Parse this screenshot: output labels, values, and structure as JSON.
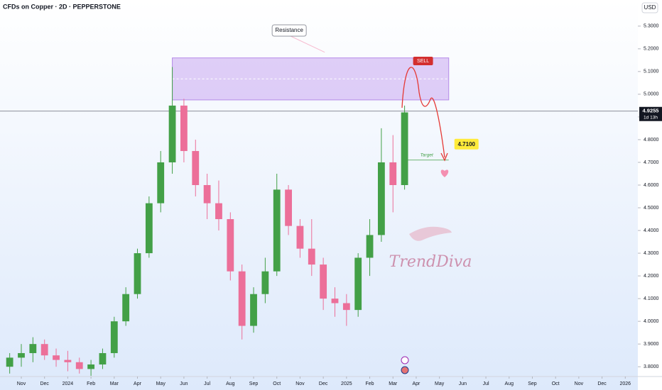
{
  "chart_data": {
    "type": "candlestick",
    "title": "CFDs on Copper · 2D · PEPPERSTONE",
    "currency": "USD",
    "x": [
      -0.5,
      0,
      0.5,
      1,
      1.5,
      2,
      2.5,
      3,
      3.5,
      4,
      4.5,
      5,
      5.5,
      6,
      6.5,
      7,
      7.5,
      8,
      8.5,
      9,
      9.5,
      10,
      10.5,
      11,
      11.5,
      12,
      12.5,
      13,
      13.5,
      14,
      14.5,
      15,
      15.5,
      16,
      16.5
    ],
    "open": [
      3.8,
      3.84,
      3.86,
      3.9,
      3.85,
      3.83,
      3.82,
      3.79,
      3.81,
      3.86,
      4.0,
      4.12,
      4.3,
      4.52,
      4.7,
      4.95,
      4.75,
      4.6,
      4.52,
      4.45,
      4.22,
      3.98,
      4.12,
      4.22,
      4.58,
      4.42,
      4.32,
      4.25,
      4.1,
      4.08,
      4.05,
      4.28,
      4.38,
      4.7,
      4.6
    ],
    "high": [
      3.86,
      3.9,
      3.93,
      3.92,
      3.88,
      3.87,
      3.84,
      3.83,
      3.88,
      4.02,
      4.15,
      4.32,
      4.55,
      4.75,
      5.12,
      4.98,
      4.8,
      4.65,
      4.62,
      4.48,
      4.25,
      4.15,
      4.28,
      4.65,
      4.6,
      4.45,
      4.45,
      4.28,
      4.15,
      4.12,
      4.3,
      4.45,
      4.85,
      4.82,
      4.95
    ],
    "low": [
      3.77,
      3.8,
      3.82,
      3.83,
      3.8,
      3.78,
      3.77,
      3.76,
      3.79,
      3.84,
      3.98,
      4.1,
      4.28,
      4.48,
      4.65,
      4.7,
      4.55,
      4.45,
      4.4,
      4.18,
      3.92,
      3.95,
      4.08,
      4.2,
      4.38,
      4.28,
      4.2,
      4.05,
      4.02,
      3.98,
      4.02,
      4.2,
      4.35,
      4.48,
      4.58
    ],
    "close": [
      3.84,
      3.86,
      3.9,
      3.85,
      3.83,
      3.82,
      3.79,
      3.81,
      3.86,
      4.0,
      4.12,
      4.3,
      4.52,
      4.7,
      4.95,
      4.75,
      4.6,
      4.52,
      4.45,
      4.22,
      3.98,
      4.12,
      4.22,
      4.58,
      4.42,
      4.32,
      4.25,
      4.1,
      4.08,
      4.05,
      4.28,
      4.38,
      4.7,
      4.6,
      4.92
    ],
    "up_color": "#43a047",
    "down_color": "#ec6f99",
    "xlim": [
      -0.917,
      26.45
    ],
    "xticks": [
      {
        "value": 0,
        "label": "Nov"
      },
      {
        "value": 1,
        "label": "Dec"
      },
      {
        "value": 2,
        "label": "2024"
      },
      {
        "value": 3,
        "label": "Feb"
      },
      {
        "value": 4,
        "label": "Mar"
      },
      {
        "value": 5,
        "label": "Apr"
      },
      {
        "value": 6,
        "label": "May"
      },
      {
        "value": 7,
        "label": "Jun"
      },
      {
        "value": 8,
        "label": "Jul"
      },
      {
        "value": 9,
        "label": "Aug"
      },
      {
        "value": 10,
        "label": "Sep"
      },
      {
        "value": 11,
        "label": "Oct"
      },
      {
        "value": 12,
        "label": "Nov"
      },
      {
        "value": 13,
        "label": "Dec"
      },
      {
        "value": 14,
        "label": "2025"
      },
      {
        "value": 15,
        "label": "Feb"
      },
      {
        "value": 16,
        "label": "Mar"
      },
      {
        "value": 17,
        "label": "Apr"
      },
      {
        "value": 18,
        "label": "May"
      },
      {
        "value": 19,
        "label": "Jun"
      },
      {
        "value": 20,
        "label": "Jul"
      },
      {
        "value": 21,
        "label": "Aug"
      },
      {
        "value": 22,
        "label": "Sep"
      },
      {
        "value": 23,
        "label": "Oct"
      },
      {
        "value": 24,
        "label": "Nov"
      },
      {
        "value": 25,
        "label": "Dec"
      },
      {
        "value": 26,
        "label": "2026"
      }
    ],
    "ylim": [
      3.76,
      5.415
    ],
    "yticks": [
      {
        "value": 3.8,
        "label": "3.8000"
      },
      {
        "value": 3.9,
        "label": "3.9000"
      },
      {
        "value": 4.0,
        "label": "4.0000"
      },
      {
        "value": 4.1,
        "label": "4.1000"
      },
      {
        "value": 4.2,
        "label": "4.2000"
      },
      {
        "value": 4.3,
        "label": "4.3000"
      },
      {
        "value": 4.4,
        "label": "4.4000"
      },
      {
        "value": 4.5,
        "label": "4.5000"
      },
      {
        "value": 4.6,
        "label": "4.6000"
      },
      {
        "value": 4.7,
        "label": "4.7000"
      },
      {
        "value": 4.8,
        "label": "4.8000"
      },
      {
        "value": 4.9,
        "label": "4.9000"
      },
      {
        "value": 5.0,
        "label": "5.0000"
      },
      {
        "value": 5.1,
        "label": "5.1000"
      },
      {
        "value": 5.2,
        "label": "5.2000"
      },
      {
        "value": 5.3,
        "label": "5.3000"
      }
    ],
    "last_price": {
      "value": 4.9255,
      "label": "4.9255"
    },
    "countdown": "1d 13h",
    "resistance": {
      "label": "Resistance",
      "x": [
        6.5,
        18.4
      ],
      "y": [
        4.975,
        5.16
      ]
    },
    "sell_label": "SELL",
    "target": {
      "label": "Target",
      "price": {
        "value": 4.71,
        "label": "4.7100"
      },
      "x": [
        16.5,
        18.4
      ]
    },
    "watermark": "TrendDiva"
  }
}
